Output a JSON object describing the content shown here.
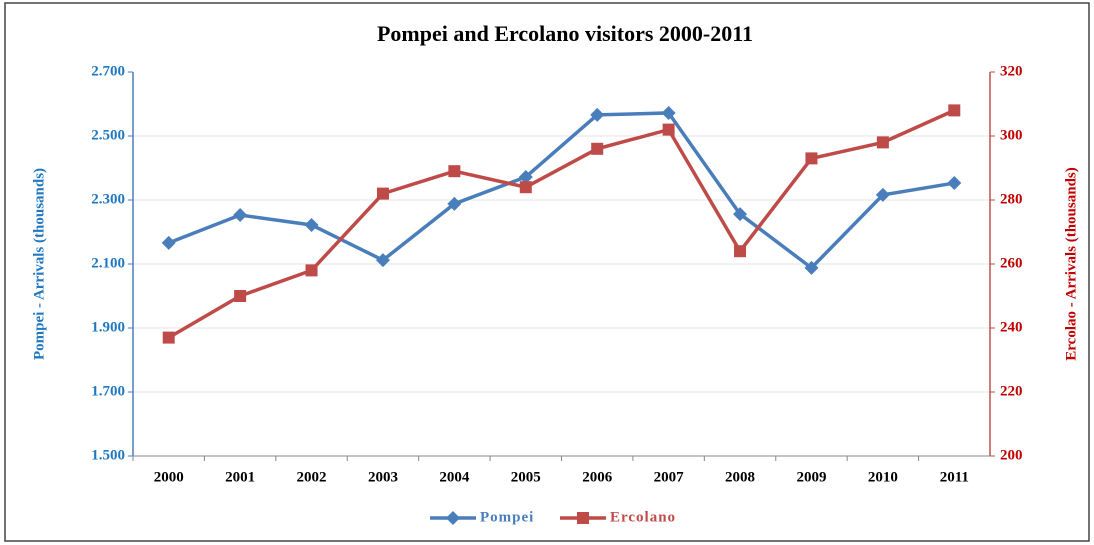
{
  "chart_data": {
    "type": "line",
    "title": "Pompei and Ercolano visitors 2000-2011",
    "y_label": "Pompei  -  Arrivals  (thousands)",
    "y2_label": "Ercolao  -  Arrivals  (thousands)",
    "categories": [
      "2000",
      "2001",
      "2002",
      "2003",
      "2004",
      "2005",
      "2006",
      "2007",
      "2008",
      "2009",
      "2010",
      "2011"
    ],
    "series": [
      {
        "name": "Pompei",
        "color": "#4a7ebb",
        "marker": "diamond",
        "values": [
          2166,
          2253,
          2222,
          2112,
          2288,
          2372,
          2566,
          2572,
          2256,
          2088,
          2316,
          2353
        ]
      },
      {
        "name": "Ercolano",
        "color": "#be4b48",
        "marker": "square",
        "axis": "y2",
        "values": [
          237,
          250,
          258,
          282,
          289,
          284,
          296,
          302,
          264,
          293,
          298,
          308
        ]
      }
    ],
    "ylim": [
      1500,
      2700
    ],
    "yticks": [
      {
        "value": 1500,
        "label": "1.500"
      },
      {
        "value": 1700,
        "label": "1.700"
      },
      {
        "value": 1900,
        "label": "1.900"
      },
      {
        "value": 2100,
        "label": "2.100"
      },
      {
        "value": 2300,
        "label": "2.300"
      },
      {
        "value": 2500,
        "label": "2.500"
      },
      {
        "value": 2700,
        "label": "2.700"
      }
    ],
    "y2lim": [
      200,
      320
    ],
    "y2ticks": [
      200,
      220,
      240,
      260,
      280,
      300,
      320
    ],
    "grid": true,
    "legend": "bottom"
  }
}
